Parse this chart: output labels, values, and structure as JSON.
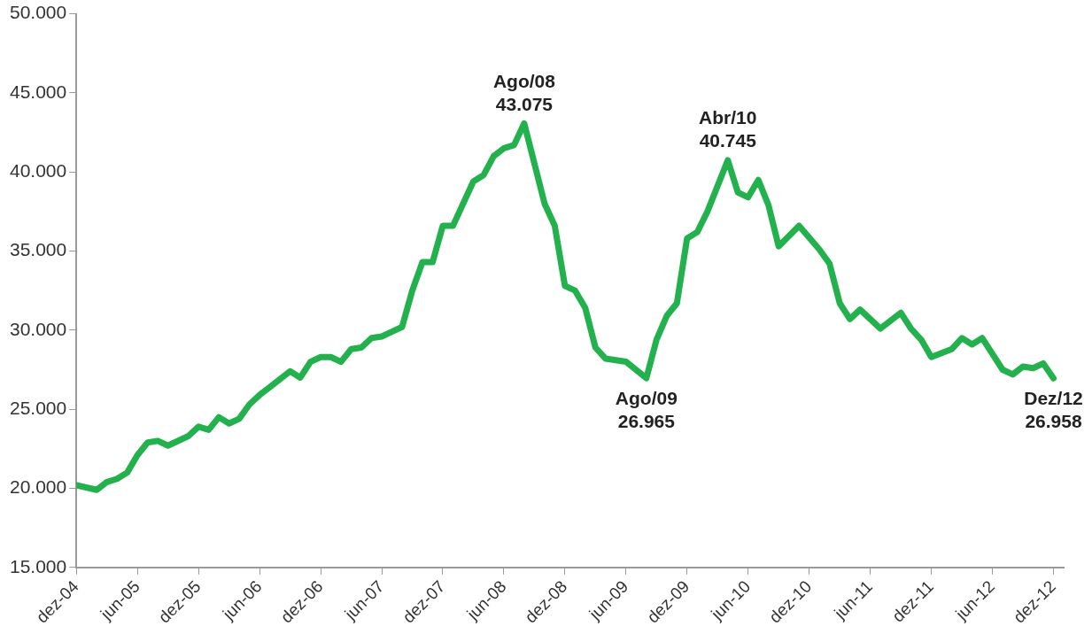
{
  "chart_data": {
    "type": "line",
    "x": [
      "2004-12",
      "2005-02",
      "2005-03",
      "2005-04",
      "2005-05",
      "2005-06",
      "2005-07",
      "2005-08",
      "2005-09",
      "2005-11",
      "2005-12",
      "2006-01",
      "2006-02",
      "2006-03",
      "2006-04",
      "2006-05",
      "2006-06",
      "2006-07",
      "2006-09",
      "2006-10",
      "2006-11",
      "2006-12",
      "2007-01",
      "2007-02",
      "2007-03",
      "2007-04",
      "2007-05",
      "2007-06",
      "2007-07",
      "2007-08",
      "2007-09",
      "2007-10",
      "2007-11",
      "2007-12",
      "2008-01",
      "2008-03",
      "2008-04",
      "2008-05",
      "2008-06",
      "2008-07",
      "2008-08",
      "2008-10",
      "2008-11",
      "2008-12",
      "2009-01",
      "2009-02",
      "2009-03",
      "2009-04",
      "2009-06",
      "2009-08",
      "2009-09",
      "2009-10",
      "2009-11",
      "2009-12",
      "2010-01",
      "2010-02",
      "2010-04",
      "2010-05",
      "2010-06",
      "2010-07",
      "2010-08",
      "2010-09",
      "2010-11",
      "2011-01",
      "2011-02",
      "2011-03",
      "2011-04",
      "2011-05",
      "2011-07",
      "2011-09",
      "2011-10",
      "2011-11",
      "2011-12",
      "2012-02",
      "2012-03",
      "2012-04",
      "2012-05",
      "2012-06",
      "2012-07",
      "2012-08",
      "2012-09",
      "2012-10",
      "2012-11",
      "2012-12"
    ],
    "series": [
      {
        "color": "#22b14c",
        "values": [
          20200,
          19900,
          20400,
          20600,
          21000,
          22100,
          22900,
          23000,
          22700,
          23300,
          23900,
          23700,
          24500,
          24100,
          24400,
          25300,
          25900,
          26400,
          27400,
          27000,
          28000,
          28300,
          28300,
          28000,
          28800,
          28900,
          29500,
          29600,
          29900,
          30200,
          32500,
          34300,
          34300,
          36600,
          36600,
          39400,
          39800,
          41000,
          41500,
          41700,
          43075,
          38000,
          36600,
          32800,
          32500,
          31400,
          28900,
          28200,
          28000,
          26965,
          29400,
          30900,
          31700,
          35800,
          36200,
          37500,
          40745,
          38700,
          38400,
          39500,
          37900,
          35300,
          36600,
          35100,
          34200,
          31700,
          30700,
          31300,
          30100,
          31100,
          30100,
          29400,
          28300,
          28800,
          29500,
          29100,
          29500,
          28500,
          27500,
          27200,
          27700,
          27600,
          27900,
          26958
        ]
      }
    ],
    "xlim": [
      "2004-12",
      "2013-01"
    ],
    "xticks": [
      {
        "value": "2004-12",
        "label": "dez-04"
      },
      {
        "value": "2005-06",
        "label": "jun-05"
      },
      {
        "value": "2005-12",
        "label": "dez-05"
      },
      {
        "value": "2006-06",
        "label": "jun-06"
      },
      {
        "value": "2006-12",
        "label": "dez-06"
      },
      {
        "value": "2007-06",
        "label": "jun-07"
      },
      {
        "value": "2007-12",
        "label": "dez-07"
      },
      {
        "value": "2008-06",
        "label": "jun-08"
      },
      {
        "value": "2008-12",
        "label": "dez-08"
      },
      {
        "value": "2009-06",
        "label": "jun-09"
      },
      {
        "value": "2009-12",
        "label": "dez-09"
      },
      {
        "value": "2010-06",
        "label": "jun-10"
      },
      {
        "value": "2010-12",
        "label": "dez-10"
      },
      {
        "value": "2011-06",
        "label": "jun-11"
      },
      {
        "value": "2011-12",
        "label": "dez-11"
      },
      {
        "value": "2012-06",
        "label": "jun-12"
      },
      {
        "value": "2012-12",
        "label": "dez-12"
      }
    ],
    "ylim": [
      15000,
      50000
    ],
    "yticks": [
      {
        "value": 15000,
        "label": "15.000"
      },
      {
        "value": 20000,
        "label": "20.000"
      },
      {
        "value": 25000,
        "label": "25.000"
      },
      {
        "value": 30000,
        "label": "30.000"
      },
      {
        "value": 35000,
        "label": "35.000"
      },
      {
        "value": 40000,
        "label": "40.000"
      },
      {
        "value": 45000,
        "label": "45.000"
      },
      {
        "value": 50000,
        "label": "50.000"
      }
    ],
    "annotations": [
      {
        "text": "Ago/08\n43.075",
        "x": "2008-08",
        "y": 43075
      },
      {
        "text": "Ago/09\n26.965",
        "x": "2009-08",
        "y": 26965
      },
      {
        "text": "Abr/10\n40.745",
        "x": "2010-04",
        "y": 40745
      },
      {
        "text": "Dez/12\n26.958",
        "x": "2012-12",
        "y": 26958
      }
    ],
    "grid": false,
    "legend": false,
    "marker": "none",
    "line_style": "solid"
  }
}
